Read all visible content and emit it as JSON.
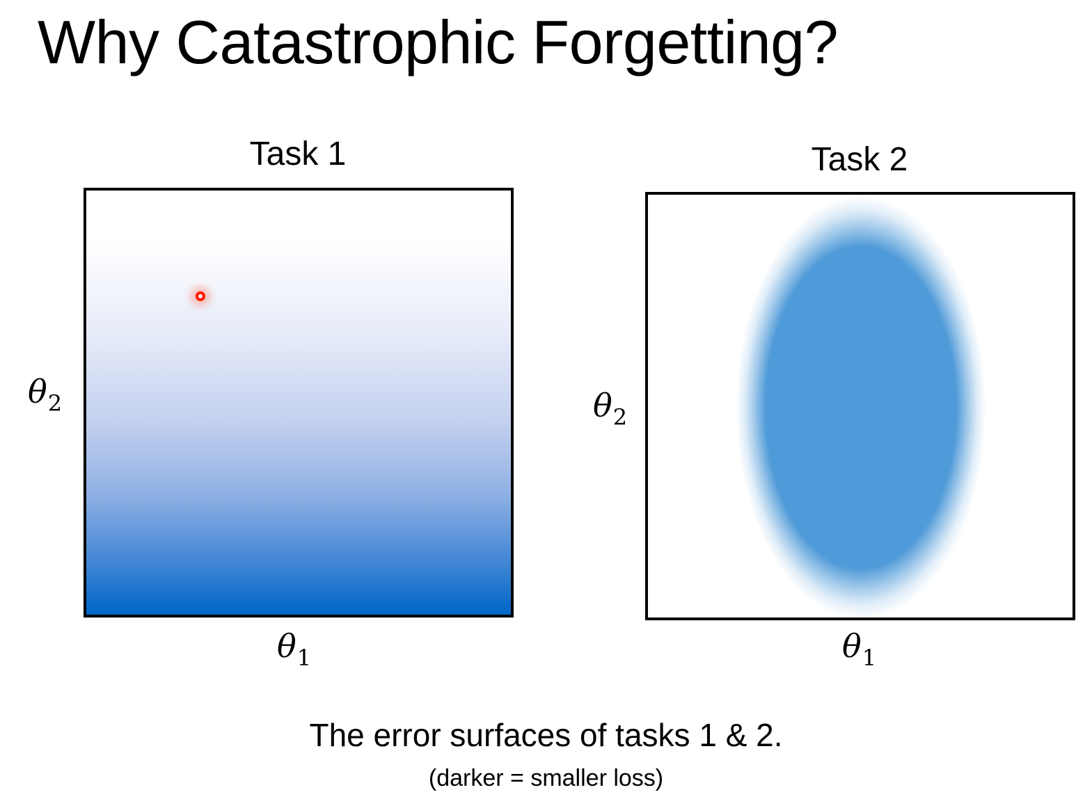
{
  "slide": {
    "title": "Why Catastrophic Forgetting?"
  },
  "panels": [
    {
      "title": "Task 1",
      "x_label": "θ",
      "x_sub": "1",
      "y_label": "θ",
      "y_sub": "2",
      "surface": "vertical gradient, darker toward bottom",
      "marker_color": "#ff1a00"
    },
    {
      "title": "Task 2",
      "x_label": "θ",
      "x_sub": "1",
      "y_label": "θ",
      "y_sub": "2",
      "surface": "centered vertical ellipse",
      "color": "#4f9ad8"
    }
  ],
  "colors": {
    "gradient_dark": "#0066c8",
    "gradient_light": "#ffffff",
    "ellipse": "#4f9ad8",
    "marker": "#ff1a00"
  },
  "caption": {
    "main": "The error surfaces of tasks 1 & 2.",
    "note": "(darker = smaller loss)"
  }
}
